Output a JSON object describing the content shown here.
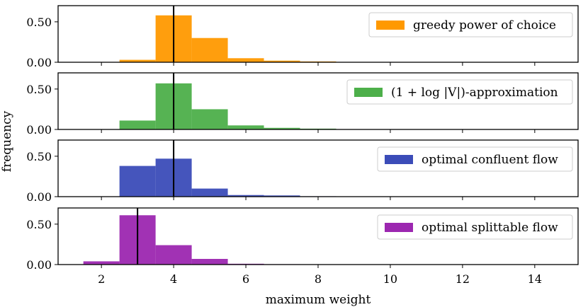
{
  "chart_data": [
    {
      "type": "bar",
      "title": "",
      "legend": "greedy power of choice",
      "legend_position": "top-right",
      "color": "#ff9900",
      "bin_edges": [
        2.5,
        3.5,
        4.5,
        5.5,
        6.5,
        7.5,
        8.5
      ],
      "values": [
        0.03,
        0.58,
        0.3,
        0.05,
        0.02,
        0.01
      ],
      "reference_line_x": 4,
      "ylim": [
        0,
        0.7
      ],
      "yticks": [
        "0.00",
        "0.50"
      ]
    },
    {
      "type": "bar",
      "title": "",
      "legend": "(1 + log |V|)-approximation",
      "legend_position": "top-right",
      "color": "#4daf4a",
      "bin_edges": [
        2.5,
        3.5,
        4.5,
        5.5,
        6.5,
        7.5,
        8.5
      ],
      "values": [
        0.11,
        0.57,
        0.25,
        0.05,
        0.02,
        0.01
      ],
      "reference_line_x": 4,
      "ylim": [
        0,
        0.7
      ],
      "yticks": [
        "0.00",
        "0.50"
      ]
    },
    {
      "type": "bar",
      "title": "",
      "legend": "optimal confluent flow",
      "legend_position": "top-right",
      "color": "#3b4cb8",
      "bin_edges": [
        2.5,
        3.5,
        4.5,
        5.5,
        6.5,
        7.5,
        8.5
      ],
      "values": [
        0.38,
        0.47,
        0.1,
        0.02,
        0.015,
        0.005
      ],
      "reference_line_x": 4,
      "ylim": [
        0,
        0.7
      ],
      "yticks": [
        "0.00",
        "0.50"
      ]
    },
    {
      "type": "bar",
      "title": "",
      "legend": "optimal splittable flow",
      "legend_position": "top-right",
      "color": "#9c27b0",
      "bin_edges": [
        1.5,
        2.5,
        3.5,
        4.5,
        5.5,
        6.5,
        7.5,
        8.5
      ],
      "values": [
        0.04,
        0.61,
        0.24,
        0.07,
        0.01,
        0.005,
        0.003
      ],
      "reference_line_x": 3,
      "ylim": [
        0,
        0.7
      ],
      "yticks": [
        "0.00",
        "0.50"
      ]
    }
  ],
  "shared": {
    "xlabel": "maximum weight",
    "ylabel": "frequency",
    "xlim": [
      0.8,
      15.2
    ],
    "xticks": [
      2,
      4,
      6,
      8,
      10,
      12,
      14
    ]
  }
}
